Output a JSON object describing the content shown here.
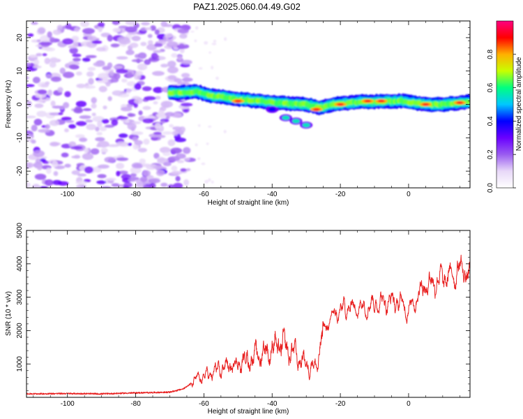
{
  "figure": {
    "title": "PAZ1.2025.060.04.49.G02"
  },
  "chart_data": [
    {
      "type": "heatmap",
      "xlabel": "Height of straight line (km)",
      "ylabel": "Frequency (Hz)",
      "xlim": [
        -112,
        18
      ],
      "ylim": [
        -25,
        25
      ],
      "xticks": [
        -100,
        -80,
        -60,
        -40,
        -20,
        0
      ],
      "yticks": [
        -20,
        -10,
        0,
        10,
        20
      ],
      "colorbar": {
        "label": "Normalized spectral amplitude",
        "range": [
          0,
          1
        ],
        "ticks": [
          0.0,
          0.2,
          0.4,
          0.6,
          0.8
        ],
        "tick_labels": [
          "0.0",
          "0.2",
          "0.4",
          "0.6",
          "0.8"
        ],
        "colors": [
          "#ffffff",
          "#e8d8f8",
          "#9a5cf0",
          "#6a00ff",
          "#0000ff",
          "#00c8ff",
          "#00ff80",
          "#c8ff00",
          "#ffb000",
          "#ff0000",
          "#ff0080"
        ]
      },
      "noise_region": {
        "x": [
          -112,
          -64
        ],
        "y": [
          -25,
          25
        ]
      },
      "ridge": [
        {
          "x": -70,
          "f": 3.5
        },
        {
          "x": -66,
          "f": 3.6
        },
        {
          "x": -62,
          "f": 3.8
        },
        {
          "x": -58,
          "f": 2.6
        },
        {
          "x": -54,
          "f": 2.2
        },
        {
          "x": -50,
          "f": 1.6
        },
        {
          "x": -46,
          "f": 1.2
        },
        {
          "x": -42,
          "f": 0.8
        },
        {
          "x": -38,
          "f": 0.4
        },
        {
          "x": -34,
          "f": 0.2
        },
        {
          "x": -30,
          "f": 0.0
        },
        {
          "x": -26,
          "f": -1.0
        },
        {
          "x": -22,
          "f": 0.0
        },
        {
          "x": -18,
          "f": 0.4
        },
        {
          "x": -14,
          "f": 0.8
        },
        {
          "x": -10,
          "f": 0.8
        },
        {
          "x": -6,
          "f": 1.0
        },
        {
          "x": -2,
          "f": 1.0
        },
        {
          "x": 2,
          "f": 0.4
        },
        {
          "x": 6,
          "f": 0.0
        },
        {
          "x": 10,
          "f": 0.0
        },
        {
          "x": 14,
          "f": 0.4
        },
        {
          "x": 18,
          "f": 0.8
        }
      ],
      "ridge_peaks": [
        {
          "x": -50,
          "f": 1.0
        },
        {
          "x": -27,
          "f": -1.5
        },
        {
          "x": -20,
          "f": 0.0
        },
        {
          "x": -12,
          "f": 1.0
        },
        {
          "x": -8,
          "f": 1.0
        },
        {
          "x": 5,
          "f": 0.0
        },
        {
          "x": 15,
          "f": 0.5
        }
      ],
      "secondary_branch": [
        {
          "x": -40,
          "f": -1.5
        },
        {
          "x": -36,
          "f": -4.0
        },
        {
          "x": -33,
          "f": -5.0
        },
        {
          "x": -30,
          "f": -6.2
        }
      ]
    },
    {
      "type": "line",
      "xlabel": "Height of straight line (km)",
      "ylabel": "SNR (10 * v/v)",
      "xlim": [
        -112,
        18
      ],
      "ylim": [
        0,
        5000
      ],
      "xticks": [
        -100,
        -80,
        -60,
        -40,
        -20,
        0
      ],
      "yticks": [
        1000,
        2000,
        3000,
        4000,
        5000
      ],
      "color": "#e82020",
      "series": [
        {
          "x": [
            -112,
            -100,
            -90,
            -80,
            -70,
            -66,
            -62,
            -58,
            -54,
            -50,
            -46,
            -42,
            -38,
            -34,
            -30,
            -27,
            -25,
            -22,
            -18,
            -14,
            -10,
            -6,
            -2,
            0,
            4,
            8,
            12,
            16,
            18
          ],
          "values": [
            100,
            110,
            100,
            130,
            150,
            250,
            550,
            700,
            900,
            1000,
            1200,
            1350,
            1600,
            1350,
            1000,
            900,
            2000,
            2450,
            2700,
            2700,
            2800,
            2900,
            2800,
            2600,
            3300,
            3500,
            3600,
            3900,
            3500
          ]
        }
      ]
    }
  ]
}
